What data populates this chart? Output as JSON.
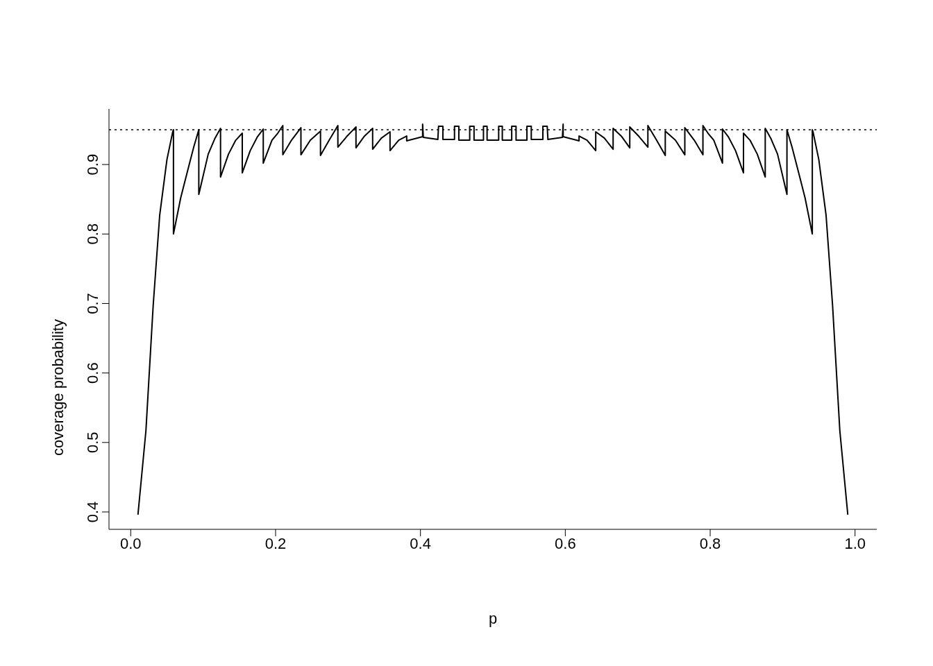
{
  "chart_data": {
    "type": "line",
    "xlabel": "p",
    "ylabel": "coverage probability",
    "xlim": [
      -0.03,
      1.03
    ],
    "ylim": [
      0.375,
      0.98
    ],
    "xticks": [
      {
        "value": 0,
        "label": "0.0"
      },
      0.2,
      0.4,
      0.6,
      0.8,
      {
        "value": 1,
        "label": "1.0"
      }
    ],
    "yticks": [
      0.4,
      0.5,
      0.6,
      0.7,
      0.8,
      0.9
    ],
    "marker": "none",
    "ref_lines": [
      {
        "axis": "y",
        "value": 0.95,
        "line_style": "dotted",
        "color": "#000000"
      }
    ],
    "x": [
      0.01,
      0.021,
      0.031,
      0.04,
      0.05,
      0.058,
      0.059,
      0.059,
      0.069,
      0.08,
      0.087,
      0.094,
      0.094,
      0.107,
      0.116,
      0.124,
      0.124,
      0.135,
      0.145,
      0.154,
      0.154,
      0.165,
      0.175,
      0.183,
      0.183,
      0.195,
      0.203,
      0.21,
      0.21,
      0.222,
      0.235,
      0.235,
      0.248,
      0.262,
      0.262,
      0.274,
      0.286,
      0.286,
      0.298,
      0.311,
      0.311,
      0.322,
      0.334,
      0.334,
      0.346,
      0.358,
      0.358,
      0.37,
      0.381,
      0.381,
      0.403,
      0.403,
      0.404,
      0.424,
      0.425,
      0.431,
      0.431,
      0.447,
      0.447,
      0.453,
      0.453,
      0.468,
      0.468,
      0.474,
      0.474,
      0.487,
      0.487,
      0.492,
      0.492,
      0.508,
      0.508,
      0.513,
      0.513,
      0.526,
      0.526,
      0.532,
      0.532,
      0.547,
      0.547,
      0.553,
      0.553,
      0.569,
      0.569,
      0.575,
      0.576,
      0.596,
      0.597,
      0.597,
      0.619,
      0.619,
      0.63,
      0.642,
      0.642,
      0.654,
      0.666,
      0.666,
      0.678,
      0.689,
      0.689,
      0.702,
      0.714,
      0.714,
      0.726,
      0.738,
      0.738,
      0.752,
      0.765,
      0.765,
      0.778,
      0.79,
      0.79,
      0.797,
      0.805,
      0.817,
      0.817,
      0.825,
      0.835,
      0.846,
      0.846,
      0.855,
      0.865,
      0.876,
      0.876,
      0.884,
      0.893,
      0.906,
      0.906,
      0.913,
      0.92,
      0.931,
      0.941,
      0.941,
      0.942,
      0.95,
      0.96,
      0.969,
      0.979,
      0.99
    ],
    "series": [
      {
        "color": "#000000",
        "values": [
          0.396,
          0.517,
          0.697,
          0.827,
          0.907,
          0.947,
          0.95,
          0.8,
          0.852,
          0.897,
          0.925,
          0.95,
          0.857,
          0.915,
          0.937,
          0.952,
          0.882,
          0.915,
          0.935,
          0.945,
          0.888,
          0.92,
          0.94,
          0.951,
          0.902,
          0.935,
          0.945,
          0.956,
          0.914,
          0.935,
          0.953,
          0.914,
          0.935,
          0.948,
          0.913,
          0.935,
          0.956,
          0.925,
          0.94,
          0.954,
          0.924,
          0.94,
          0.952,
          0.922,
          0.938,
          0.947,
          0.92,
          0.935,
          0.941,
          0.934,
          0.94,
          0.958,
          0.939,
          0.936,
          0.955,
          0.955,
          0.936,
          0.936,
          0.955,
          0.955,
          0.935,
          0.935,
          0.955,
          0.955,
          0.935,
          0.935,
          0.955,
          0.955,
          0.935,
          0.935,
          0.955,
          0.955,
          0.935,
          0.935,
          0.955,
          0.955,
          0.935,
          0.935,
          0.955,
          0.955,
          0.936,
          0.936,
          0.955,
          0.955,
          0.936,
          0.939,
          0.958,
          0.94,
          0.934,
          0.941,
          0.935,
          0.92,
          0.947,
          0.938,
          0.922,
          0.952,
          0.94,
          0.924,
          0.954,
          0.94,
          0.925,
          0.956,
          0.935,
          0.913,
          0.948,
          0.935,
          0.914,
          0.953,
          0.935,
          0.914,
          0.956,
          0.945,
          0.935,
          0.902,
          0.951,
          0.94,
          0.92,
          0.888,
          0.945,
          0.935,
          0.915,
          0.882,
          0.952,
          0.937,
          0.915,
          0.857,
          0.95,
          0.925,
          0.897,
          0.852,
          0.8,
          0.95,
          0.947,
          0.907,
          0.827,
          0.697,
          0.517,
          0.396
        ]
      }
    ]
  }
}
